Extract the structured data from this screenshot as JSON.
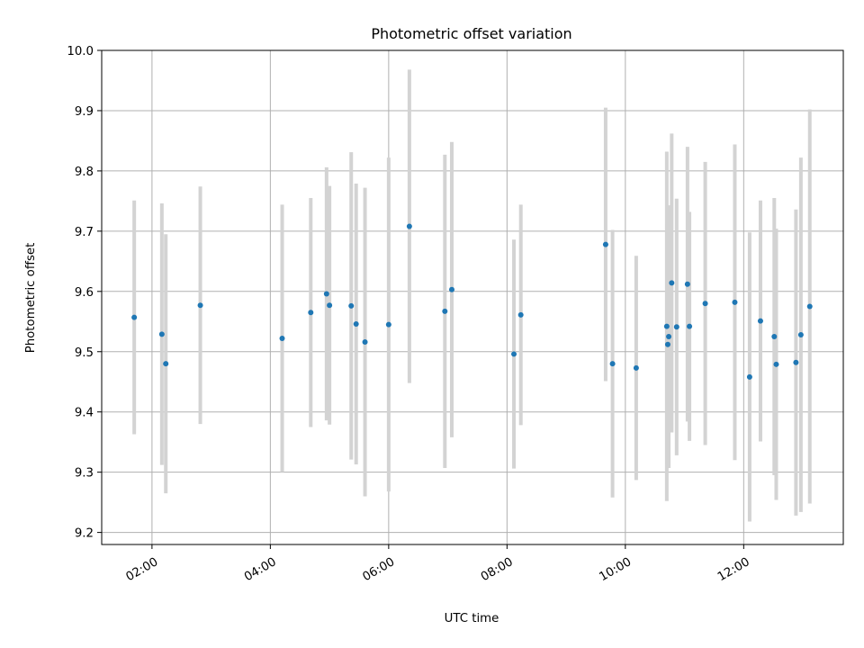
{
  "chart_data": {
    "type": "scatter",
    "title": "Photometric offset variation",
    "xlabel": "UTC time",
    "ylabel": "Photometric offset",
    "x_unit": "UTC time (HH:MM)",
    "xlim": [
      "01:09",
      "13:41"
    ],
    "ylim": [
      9.18,
      10.0
    ],
    "grid": true,
    "legend": "none",
    "xticks": [
      "02:00",
      "04:00",
      "06:00",
      "08:00",
      "10:00",
      "12:00"
    ],
    "yticks": [
      "9.2",
      "9.3",
      "9.4",
      "9.5",
      "9.6",
      "9.7",
      "9.8",
      "9.9",
      "10.0"
    ],
    "series": [
      {
        "marker_color": "#1f77b4",
        "errorbar_color": "#d3d3d3",
        "points": [
          {
            "x": "01:42",
            "y": 9.557,
            "err": 0.194
          },
          {
            "x": "02:10",
            "y": 9.529,
            "err": 0.217
          },
          {
            "x": "02:14",
            "y": 9.48,
            "err": 0.215
          },
          {
            "x": "02:49",
            "y": 9.577,
            "err": 0.197
          },
          {
            "x": "04:12",
            "y": 9.522,
            "err": 0.222
          },
          {
            "x": "04:41",
            "y": 9.565,
            "err": 0.19
          },
          {
            "x": "04:57",
            "y": 9.596,
            "err": 0.21
          },
          {
            "x": "05:00",
            "y": 9.577,
            "err": 0.198
          },
          {
            "x": "05:22",
            "y": 9.576,
            "err": 0.255
          },
          {
            "x": "05:27",
            "y": 9.546,
            "err": 0.233
          },
          {
            "x": "05:36",
            "y": 9.516,
            "err": 0.256
          },
          {
            "x": "06:00",
            "y": 9.545,
            "err": 0.277
          },
          {
            "x": "06:21",
            "y": 9.708,
            "err": 0.26
          },
          {
            "x": "06:57",
            "y": 9.567,
            "err": 0.26
          },
          {
            "x": "07:04",
            "y": 9.603,
            "err": 0.245
          },
          {
            "x": "08:07",
            "y": 9.496,
            "err": 0.19
          },
          {
            "x": "08:14",
            "y": 9.561,
            "err": 0.183
          },
          {
            "x": "09:40",
            "y": 9.678,
            "err": 0.227
          },
          {
            "x": "09:47",
            "y": 9.48,
            "err": 0.222
          },
          {
            "x": "10:11",
            "y": 9.473,
            "err": 0.186
          },
          {
            "x": "10:42",
            "y": 9.542,
            "err": 0.29
          },
          {
            "x": "10:43",
            "y": 9.512,
            "err": 0.2
          },
          {
            "x": "10:44",
            "y": 9.525,
            "err": 0.218
          },
          {
            "x": "10:47",
            "y": 9.614,
            "err": 0.248
          },
          {
            "x": "10:52",
            "y": 9.541,
            "err": 0.213
          },
          {
            "x": "11:03",
            "y": 9.612,
            "err": 0.228
          },
          {
            "x": "11:05",
            "y": 9.542,
            "err": 0.19
          },
          {
            "x": "11:21",
            "y": 9.58,
            "err": 0.235
          },
          {
            "x": "11:51",
            "y": 9.582,
            "err": 0.262
          },
          {
            "x": "12:06",
            "y": 9.458,
            "err": 0.24
          },
          {
            "x": "12:17",
            "y": 9.551,
            "err": 0.2
          },
          {
            "x": "12:31",
            "y": 9.525,
            "err": 0.23
          },
          {
            "x": "12:33",
            "y": 9.479,
            "err": 0.225
          },
          {
            "x": "12:53",
            "y": 9.482,
            "err": 0.254
          },
          {
            "x": "12:58",
            "y": 9.528,
            "err": 0.294
          },
          {
            "x": "13:07",
            "y": 9.575,
            "err": 0.327
          }
        ]
      }
    ]
  }
}
